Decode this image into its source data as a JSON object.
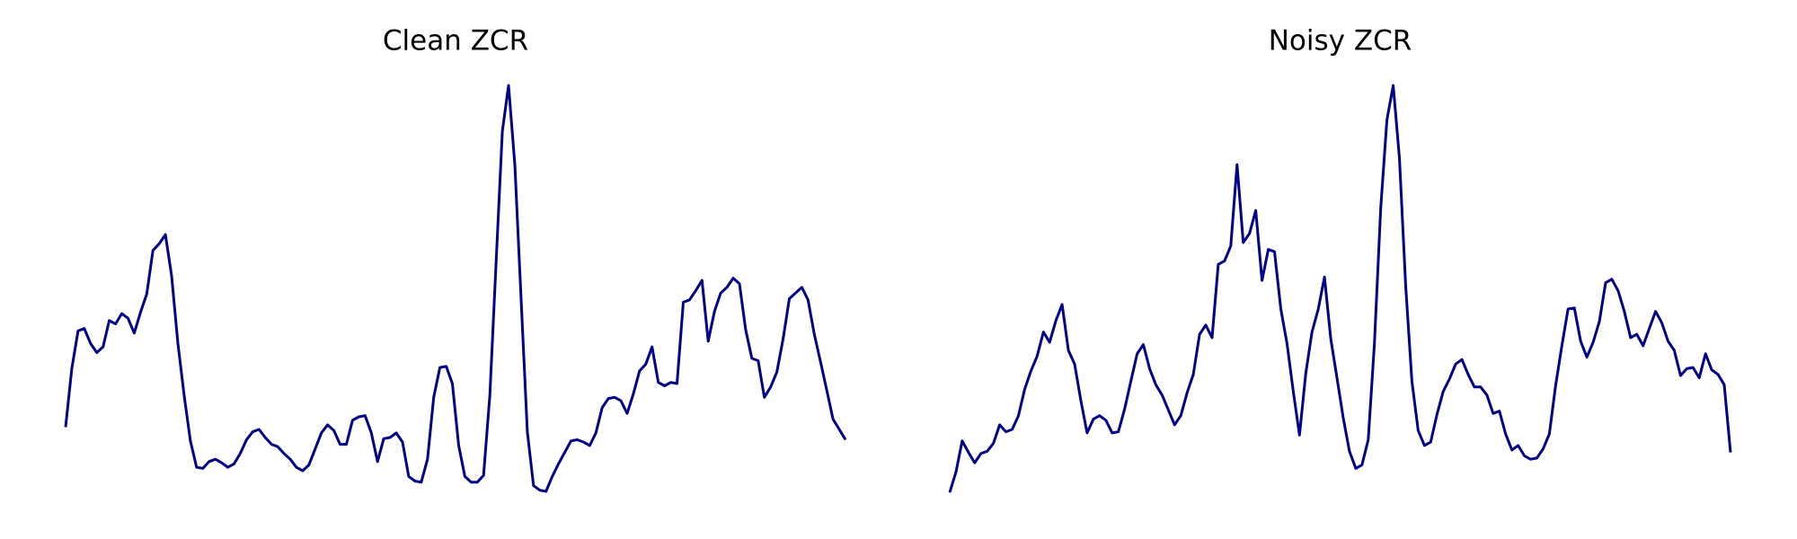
{
  "chart_data": [
    {
      "type": "line",
      "title": "Clean ZCR",
      "color": "#00008b",
      "ylim": [
        0,
        380
      ],
      "values": [
        67,
        118,
        151,
        153,
        140,
        132,
        137,
        160,
        157,
        166,
        162,
        149,
        167,
        183,
        221,
        227,
        235,
        199,
        140,
        95,
        55,
        32,
        31,
        37,
        39,
        36,
        32,
        35,
        44,
        56,
        63,
        65,
        58,
        52,
        50,
        44,
        39,
        32,
        29,
        34,
        48,
        62,
        69,
        64,
        52,
        52,
        73,
        76,
        77,
        62,
        37,
        57,
        58,
        62,
        54,
        24,
        20,
        19,
        39,
        93,
        119,
        120,
        105,
        51,
        24,
        19,
        19,
        25,
        95,
        210,
        325,
        365,
        296,
        180,
        63,
        16,
        12,
        11,
        24,
        35,
        45,
        55,
        56,
        54,
        51,
        62,
        84,
        92,
        93,
        90,
        79,
        96,
        116,
        122,
        137,
        106,
        103,
        106,
        105,
        176,
        178,
        186,
        195,
        142,
        168,
        184,
        189,
        197,
        192,
        152,
        127,
        125,
        93,
        102,
        115,
        144,
        179,
        184,
        189,
        178,
        148,
        124,
        99,
        74,
        65,
        56
      ]
    },
    {
      "type": "line",
      "title": "Noisy ZCR",
      "color": "#00008b",
      "ylim": [
        0,
        380
      ],
      "values": [
        10,
        28,
        55,
        45,
        36,
        44,
        46,
        53,
        69,
        63,
        65,
        77,
        100,
        116,
        129,
        150,
        141,
        160,
        174,
        134,
        122,
        90,
        62,
        74,
        77,
        73,
        62,
        63,
        83,
        107,
        131,
        139,
        118,
        104,
        95,
        82,
        69,
        77,
        97,
        113,
        148,
        156,
        145,
        209,
        212,
        225,
        296,
        228,
        236,
        256,
        195,
        222,
        220,
        170,
        140,
        98,
        60,
        114,
        150,
        170,
        198,
        144,
        110,
        75,
        46,
        31,
        34,
        56,
        140,
        258,
        335,
        365,
        302,
        190,
        107,
        64,
        51,
        54,
        78,
        98,
        109,
        122,
        126,
        113,
        102,
        102,
        95,
        79,
        81,
        61,
        47,
        51,
        42,
        39,
        40,
        48,
        61,
        103,
        138,
        170,
        171,
        142,
        128,
        141,
        159,
        193,
        196,
        186,
        168,
        145,
        148,
        138,
        153,
        168,
        158,
        142,
        134,
        112,
        118,
        119,
        110,
        131,
        117,
        113,
        104,
        45
      ]
    }
  ]
}
